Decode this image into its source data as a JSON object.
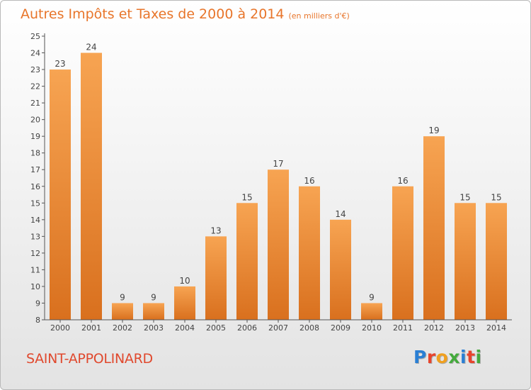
{
  "header": {
    "title": "Autres Impôts et Taxes de 2000 à 2014",
    "unit": "(en milliers d'€)"
  },
  "footer": {
    "commune": "SAINT-APPOLINARD",
    "logo_letters": [
      "P",
      "r",
      "o",
      "x",
      "i",
      "t",
      "i"
    ],
    "logo_colors": [
      "#2a7fd4",
      "#e8442c",
      "#f0a020",
      "#44aa3c",
      "#2a7fd4",
      "#e8442c",
      "#44aa3c"
    ]
  },
  "colors": {
    "bar_light": "#f7a452",
    "bar_dark": "#d9701e",
    "accent": "#e8752a"
  },
  "chart_data": {
    "type": "bar",
    "title": "Autres Impôts et Taxes de 2000 à 2014",
    "subtitle": "(en milliers d'€)",
    "categories": [
      "2000",
      "2001",
      "2002",
      "2003",
      "2004",
      "2005",
      "2006",
      "2007",
      "2008",
      "2009",
      "2010",
      "2011",
      "2012",
      "2013",
      "2014"
    ],
    "values": [
      23,
      24,
      9,
      9,
      10,
      13,
      15,
      17,
      16,
      14,
      9,
      16,
      19,
      15,
      15
    ],
    "ylim": [
      8,
      25
    ],
    "yticks": [
      8,
      9,
      10,
      11,
      12,
      13,
      14,
      15,
      16,
      17,
      18,
      19,
      20,
      21,
      22,
      23,
      24,
      25
    ],
    "grid": false,
    "data_labels": true
  }
}
